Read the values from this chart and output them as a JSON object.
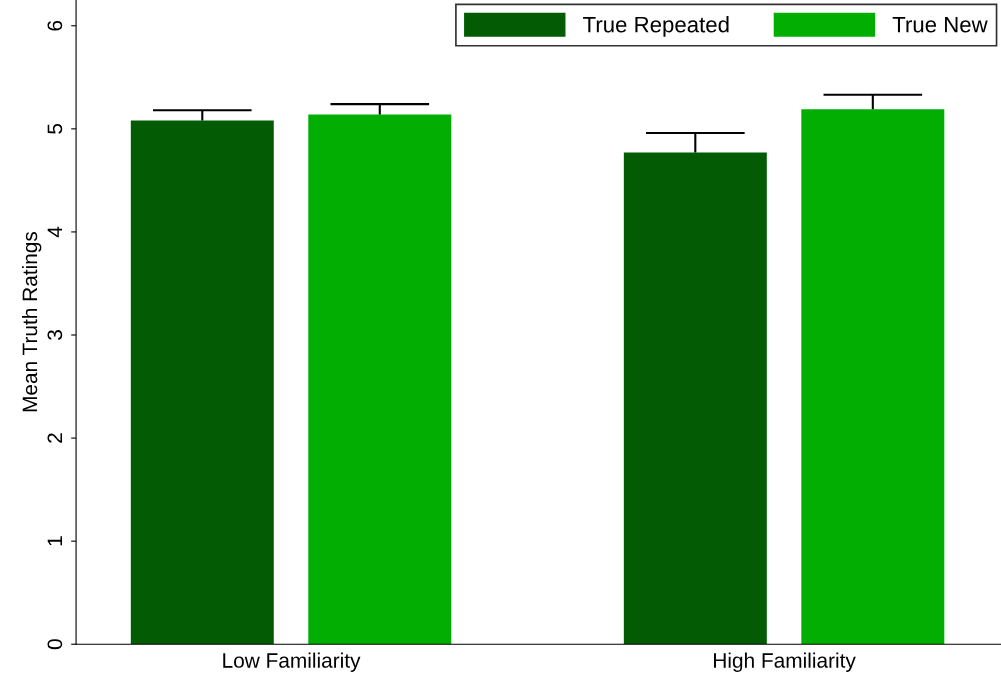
{
  "chart_data": {
    "type": "bar",
    "ylabel": "Mean Truth Ratings",
    "categories": [
      "Low Familiarity",
      "High Familiarity"
    ],
    "series": [
      {
        "name": "True Repeated",
        "color": "#035c03",
        "values": [
          5.08,
          4.77
        ],
        "errors": [
          [
            5.08,
            5.18
          ],
          [
            4.77,
            4.96
          ]
        ]
      },
      {
        "name": "True New",
        "color": "#03ae03",
        "values": [
          5.14,
          5.19
        ],
        "errors": [
          [
            5.14,
            5.24
          ],
          [
            5.19,
            5.33
          ]
        ]
      }
    ],
    "ylim": [
      0,
      6.25
    ],
    "yticks": [
      0,
      1,
      2,
      3,
      4,
      5,
      6
    ],
    "grid": false,
    "legend": "top right"
  }
}
